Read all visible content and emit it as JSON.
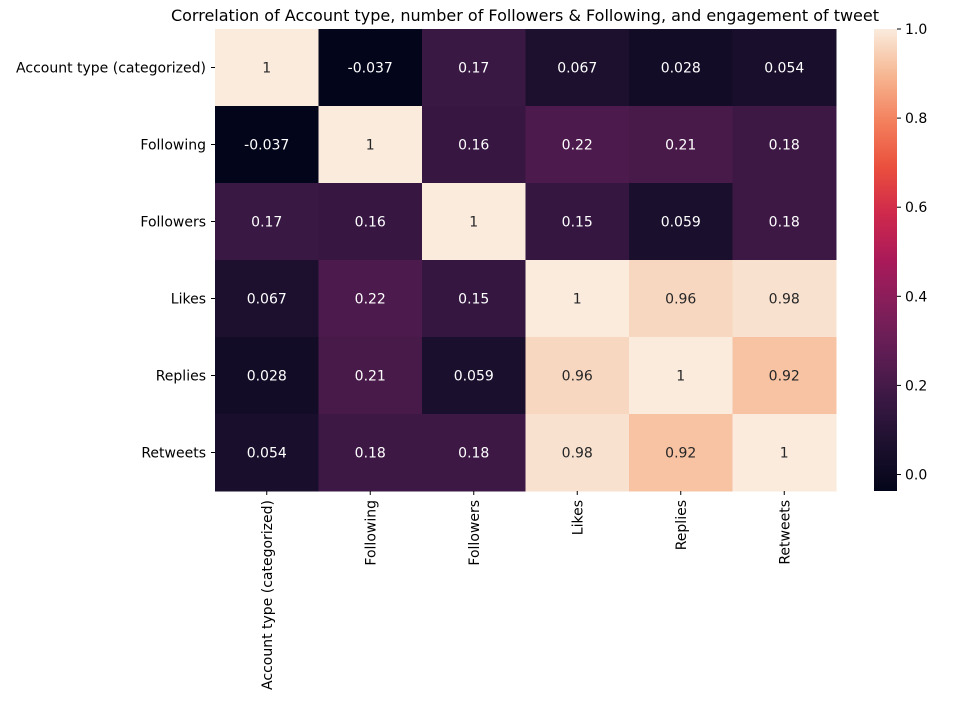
{
  "chart_data": {
    "type": "heatmap",
    "title": "Correlation of Account type, number of Followers & Following, and engagement of tweet",
    "row_labels": [
      "Account type (categorized)",
      "Following",
      "Followers",
      "Likes",
      "Replies",
      "Retweets"
    ],
    "col_labels": [
      "Account type (categorized)",
      "Following",
      "Followers",
      "Likes",
      "Replies",
      "Retweets"
    ],
    "values": [
      [
        1,
        -0.037,
        0.17,
        0.067,
        0.028,
        0.054
      ],
      [
        -0.037,
        1,
        0.16,
        0.22,
        0.21,
        0.18
      ],
      [
        0.17,
        0.16,
        1,
        0.15,
        0.059,
        0.18
      ],
      [
        0.067,
        0.22,
        0.15,
        1,
        0.96,
        0.98
      ],
      [
        0.028,
        0.21,
        0.059,
        0.96,
        1,
        0.92
      ],
      [
        0.054,
        0.18,
        0.18,
        0.98,
        0.92,
        1
      ]
    ],
    "annotations": [
      [
        "1",
        "-0.037",
        "0.17",
        "0.067",
        "0.028",
        "0.054"
      ],
      [
        "-0.037",
        "1",
        "0.16",
        "0.22",
        "0.21",
        "0.18"
      ],
      [
        "0.17",
        "0.16",
        "1",
        "0.15",
        "0.059",
        "0.18"
      ],
      [
        "0.067",
        "0.22",
        "0.15",
        "1",
        "0.96",
        "0.98"
      ],
      [
        "0.028",
        "0.21",
        "0.059",
        "0.96",
        "1",
        "0.92"
      ],
      [
        "0.054",
        "0.18",
        "0.18",
        "0.98",
        "0.92",
        "1"
      ]
    ],
    "colorbar": {
      "vmin": -0.037,
      "vmax": 1,
      "ticks": [
        0.0,
        0.2,
        0.4,
        0.6,
        0.8,
        1.0
      ],
      "tick_labels": [
        "0.0",
        "0.2",
        "0.4",
        "0.6",
        "0.8",
        "1.0"
      ]
    },
    "colormap": "rocket",
    "legend": "colorbar-right"
  }
}
